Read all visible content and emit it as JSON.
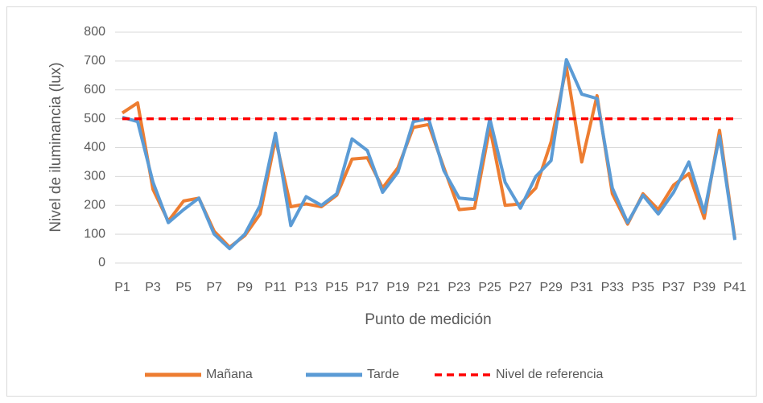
{
  "chart_data": {
    "type": "line",
    "xlabel": "Punto de medición",
    "ylabel": "Nivel de iluminancia (lux)",
    "categories": [
      "P1",
      null,
      "P3",
      null,
      "P5",
      null,
      "P7",
      null,
      "P9",
      null,
      "P11",
      null,
      "P13",
      null,
      "P15",
      null,
      "P17",
      null,
      "P19",
      null,
      "P21",
      null,
      "P23",
      null,
      "P25",
      null,
      "P27",
      null,
      "P29",
      null,
      "P31",
      null,
      "P33",
      null,
      "P35",
      null,
      "P37",
      null,
      "P39",
      null,
      "P41"
    ],
    "series": [
      {
        "name": "Mañana",
        "color": "#ed7d31",
        "values": [
          520,
          555,
          255,
          145,
          215,
          225,
          110,
          55,
          95,
          170,
          430,
          195,
          205,
          195,
          235,
          360,
          365,
          260,
          330,
          470,
          480,
          330,
          185,
          190,
          470,
          200,
          205,
          260,
          420,
          680,
          350,
          580,
          240,
          135,
          240,
          185,
          270,
          310,
          155,
          460,
          85
        ]
      },
      {
        "name": "Tarde",
        "color": "#5b9bd5",
        "values": [
          505,
          490,
          280,
          140,
          185,
          225,
          100,
          50,
          100,
          200,
          450,
          130,
          230,
          200,
          240,
          430,
          390,
          245,
          315,
          490,
          500,
          320,
          225,
          220,
          500,
          280,
          190,
          300,
          355,
          705,
          585,
          570,
          260,
          140,
          235,
          170,
          245,
          350,
          175,
          440,
          80
        ]
      },
      {
        "name": "Nivel de referencia",
        "color": "#ff0000",
        "dashed": true,
        "values": [
          500,
          500,
          500,
          500,
          500,
          500,
          500,
          500,
          500,
          500,
          500,
          500,
          500,
          500,
          500,
          500,
          500,
          500,
          500,
          500,
          500,
          500,
          500,
          500,
          500,
          500,
          500,
          500,
          500,
          500,
          500,
          500,
          500,
          500,
          500,
          500,
          500,
          500,
          500,
          500,
          500
        ]
      }
    ],
    "ylim": [
      0,
      800
    ],
    "yticks": [
      0,
      100,
      200,
      300,
      400,
      500,
      600,
      700,
      800
    ],
    "grid": true,
    "legend": "bottom"
  }
}
